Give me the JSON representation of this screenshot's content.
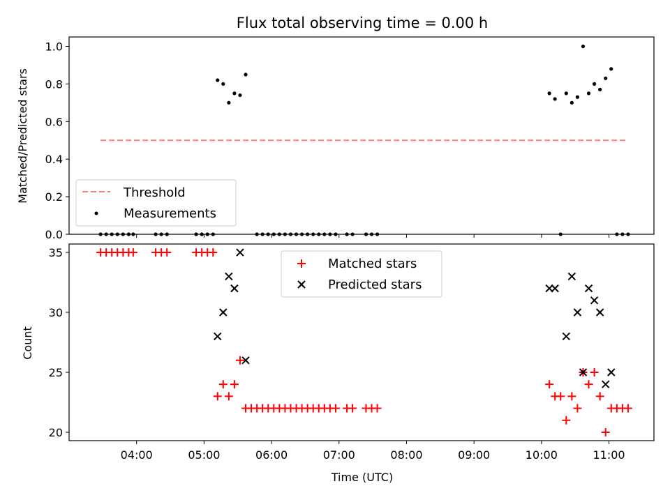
{
  "chart_data": [
    {
      "type": "scatter",
      "title": "Flux total observing time = 0.00 h",
      "xlabel": "",
      "ylabel": "Matched/Predicted stars",
      "ylim": [
        0.0,
        1.05
      ],
      "yticks": [
        "0.0",
        "0.2",
        "0.4",
        "0.6",
        "0.8",
        "1.0"
      ],
      "legend_position": "lower-left",
      "threshold": {
        "name": "Threshold",
        "value": 0.5,
        "x_start": "03:28",
        "x_end": "11:15",
        "color": "#ff7f7f",
        "style": "dashed"
      },
      "series": [
        {
          "name": "Measurements",
          "color": "#000000",
          "marker": "dot",
          "points": [
            [
              "03:28",
              0.0
            ],
            [
              "03:33",
              0.0
            ],
            [
              "03:38",
              0.0
            ],
            [
              "03:43",
              0.0
            ],
            [
              "03:48",
              0.0
            ],
            [
              "03:53",
              0.0
            ],
            [
              "03:57",
              0.0
            ],
            [
              "04:17",
              0.0
            ],
            [
              "04:22",
              0.0
            ],
            [
              "04:27",
              0.0
            ],
            [
              "04:53",
              0.0
            ],
            [
              "04:58",
              0.0
            ],
            [
              "05:03",
              0.0
            ],
            [
              "05:08",
              0.0
            ],
            [
              "05:12",
              0.82
            ],
            [
              "05:17",
              0.8
            ],
            [
              "05:22",
              0.7
            ],
            [
              "05:27",
              0.75
            ],
            [
              "05:32",
              0.74
            ],
            [
              "05:37",
              0.85
            ],
            [
              "05:47",
              0.0
            ],
            [
              "05:52",
              0.0
            ],
            [
              "05:57",
              0.0
            ],
            [
              "06:02",
              0.0
            ],
            [
              "06:07",
              0.0
            ],
            [
              "06:12",
              0.0
            ],
            [
              "06:17",
              0.0
            ],
            [
              "06:22",
              0.0
            ],
            [
              "06:27",
              0.0
            ],
            [
              "06:32",
              0.0
            ],
            [
              "06:37",
              0.0
            ],
            [
              "06:42",
              0.0
            ],
            [
              "06:47",
              0.0
            ],
            [
              "06:52",
              0.0
            ],
            [
              "06:57",
              0.0
            ],
            [
              "07:07",
              0.0
            ],
            [
              "07:12",
              0.0
            ],
            [
              "07:24",
              0.0
            ],
            [
              "07:29",
              0.0
            ],
            [
              "07:34",
              0.0
            ],
            [
              "10:07",
              0.75
            ],
            [
              "10:12",
              0.72
            ],
            [
              "10:17",
              0.0
            ],
            [
              "10:22",
              0.75
            ],
            [
              "10:27",
              0.7
            ],
            [
              "10:32",
              0.73
            ],
            [
              "10:37",
              1.0
            ],
            [
              "10:42",
              0.75
            ],
            [
              "10:47",
              0.8
            ],
            [
              "10:52",
              0.77
            ],
            [
              "10:57",
              0.83
            ],
            [
              "11:02",
              0.88
            ],
            [
              "11:07",
              0.0
            ],
            [
              "11:12",
              0.0
            ],
            [
              "11:17",
              0.0
            ]
          ]
        }
      ],
      "legend": [
        "Threshold",
        "Measurements"
      ]
    },
    {
      "type": "scatter",
      "title": "",
      "xlabel": "Time (UTC)",
      "ylabel": "Count",
      "xlim": [
        "03:00",
        "11:40"
      ],
      "xticks": [
        "04:00",
        "05:00",
        "06:00",
        "07:00",
        "08:00",
        "09:00",
        "10:00",
        "11:00"
      ],
      "ylim": [
        19.3,
        35.7
      ],
      "yticks": [
        "20",
        "25",
        "30",
        "35"
      ],
      "legend_position": "top-center",
      "series": [
        {
          "name": "Matched stars",
          "color": "#ff0000",
          "marker": "plus",
          "points": [
            [
              "03:28",
              35
            ],
            [
              "03:33",
              35
            ],
            [
              "03:38",
              35
            ],
            [
              "03:43",
              35
            ],
            [
              "03:48",
              35
            ],
            [
              "03:53",
              35
            ],
            [
              "03:57",
              35
            ],
            [
              "04:17",
              35
            ],
            [
              "04:22",
              35
            ],
            [
              "04:27",
              35
            ],
            [
              "04:53",
              35
            ],
            [
              "04:58",
              35
            ],
            [
              "05:03",
              35
            ],
            [
              "05:08",
              35
            ],
            [
              "05:12",
              23
            ],
            [
              "05:17",
              24
            ],
            [
              "05:22",
              23
            ],
            [
              "05:27",
              24
            ],
            [
              "05:32",
              26
            ],
            [
              "05:37",
              22
            ],
            [
              "05:42",
              22
            ],
            [
              "05:47",
              22
            ],
            [
              "05:52",
              22
            ],
            [
              "05:57",
              22
            ],
            [
              "06:02",
              22
            ],
            [
              "06:07",
              22
            ],
            [
              "06:12",
              22
            ],
            [
              "06:17",
              22
            ],
            [
              "06:22",
              22
            ],
            [
              "06:27",
              22
            ],
            [
              "06:32",
              22
            ],
            [
              "06:37",
              22
            ],
            [
              "06:42",
              22
            ],
            [
              "06:47",
              22
            ],
            [
              "06:52",
              22
            ],
            [
              "06:57",
              22
            ],
            [
              "07:07",
              22
            ],
            [
              "07:12",
              22
            ],
            [
              "07:24",
              22
            ],
            [
              "07:29",
              22
            ],
            [
              "07:34",
              22
            ],
            [
              "10:07",
              24
            ],
            [
              "10:12",
              23
            ],
            [
              "10:17",
              23
            ],
            [
              "10:22",
              21
            ],
            [
              "10:27",
              23
            ],
            [
              "10:32",
              22
            ],
            [
              "10:37",
              25
            ],
            [
              "10:42",
              24
            ],
            [
              "10:47",
              25
            ],
            [
              "10:52",
              23
            ],
            [
              "10:57",
              20
            ],
            [
              "11:02",
              22
            ],
            [
              "11:07",
              22
            ],
            [
              "11:12",
              22
            ],
            [
              "11:17",
              22
            ]
          ]
        },
        {
          "name": "Predicted stars",
          "color": "#000000",
          "marker": "x",
          "points": [
            [
              "05:12",
              28
            ],
            [
              "05:17",
              30
            ],
            [
              "05:22",
              33
            ],
            [
              "05:27",
              32
            ],
            [
              "05:32",
              35
            ],
            [
              "05:37",
              26
            ],
            [
              "10:07",
              32
            ],
            [
              "10:12",
              32
            ],
            [
              "10:22",
              28
            ],
            [
              "10:27",
              33
            ],
            [
              "10:32",
              30
            ],
            [
              "10:37",
              25
            ],
            [
              "10:42",
              32
            ],
            [
              "10:47",
              31
            ],
            [
              "10:52",
              30
            ],
            [
              "10:57",
              24
            ],
            [
              "11:02",
              25
            ]
          ]
        }
      ],
      "legend": [
        "Matched stars",
        "Predicted stars"
      ]
    }
  ]
}
